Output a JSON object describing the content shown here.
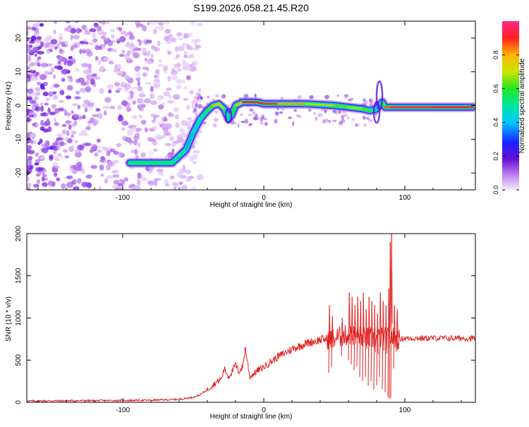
{
  "title": "S199.2026.058.21.45.R20",
  "chart_data": [
    {
      "type": "heatmap",
      "title": "S199.2026.058.21.45.R20",
      "xlabel": "Height of straight line (km)",
      "ylabel": "Frequency (Hz)",
      "xlim": [
        -168,
        150
      ],
      "ylim": [
        -25,
        25
      ],
      "xticks": [
        -100,
        0,
        100
      ],
      "yticks": [
        -20,
        -10,
        0,
        10,
        20
      ],
      "colorbar": {
        "label": "Normalized spectral amplitude",
        "range": [
          0,
          1
        ],
        "ticks": [
          0.0,
          0.2,
          0.4,
          0.6,
          0.8
        ]
      },
      "noise_region_x": [
        -168,
        -55
      ],
      "ridge": {
        "x": [
          -95,
          -65,
          -55,
          -50,
          -45,
          -40,
          -36,
          -32,
          -28,
          -25,
          -23,
          -20,
          -15,
          -12,
          -5,
          0,
          10,
          30,
          50,
          60,
          70,
          75,
          80,
          84,
          86,
          90,
          120,
          148
        ],
        "freq": [
          -17,
          -17,
          -13,
          -8,
          -4,
          -1.5,
          0,
          0.5,
          -1,
          -4,
          -3,
          0,
          1,
          1,
          1,
          0.5,
          0.5,
          0.5,
          0,
          -0.5,
          -1,
          -1.5,
          -1,
          1,
          -0.5,
          -0.5,
          -0.5,
          -0.5
        ],
        "amp": [
          0.55,
          0.55,
          0.4,
          0.35,
          0.45,
          0.55,
          0.7,
          0.85,
          0.6,
          0.4,
          0.5,
          0.65,
          0.9,
          0.92,
          0.92,
          0.9,
          0.88,
          0.75,
          0.6,
          0.65,
          0.7,
          0.55,
          0.45,
          0.4,
          0.85,
          0.88,
          0.9,
          0.9
        ]
      }
    },
    {
      "type": "line",
      "xlabel": "Height of straight line (km)",
      "ylabel": "SNR (10 * v/v)",
      "xlim": [
        -168,
        150
      ],
      "ylim": [
        0,
        2000
      ],
      "xticks": [
        -100,
        0,
        100
      ],
      "yticks": [
        0,
        500,
        1000,
        1500,
        2000
      ],
      "series": [
        {
          "name": "SNR",
          "color": "#e02020",
          "x": [
            -168,
            -150,
            -120,
            -100,
            -80,
            -60,
            -50,
            -45,
            -40,
            -35,
            -30,
            -28,
            -25,
            -22,
            -20,
            -18,
            -15,
            -13,
            -10,
            -5,
            0,
            10,
            20,
            30,
            40,
            45,
            50,
            55,
            60,
            65,
            70,
            75,
            80,
            85,
            88,
            90,
            92,
            95,
            100,
            110,
            120,
            130,
            140,
            150
          ],
          "y": [
            15,
            18,
            20,
            22,
            25,
            35,
            60,
            90,
            150,
            220,
            280,
            400,
            300,
            380,
            450,
            360,
            420,
            650,
            300,
            370,
            420,
            540,
            630,
            700,
            740,
            750,
            760,
            780,
            800,
            800,
            780,
            760,
            750,
            770,
            760,
            780,
            760,
            750,
            760,
            760,
            760,
            760,
            760,
            760
          ],
          "spikes": [
            {
              "x": 46,
              "min": 350,
              "max": 1150
            },
            {
              "x": 48,
              "min": 420,
              "max": 1020
            },
            {
              "x": 55,
              "min": 550,
              "max": 1000
            },
            {
              "x": 60,
              "min": 500,
              "max": 1300
            },
            {
              "x": 62,
              "min": 450,
              "max": 1250
            },
            {
              "x": 64,
              "min": 380,
              "max": 1150
            },
            {
              "x": 66,
              "min": 430,
              "max": 1250
            },
            {
              "x": 68,
              "min": 300,
              "max": 1200
            },
            {
              "x": 70,
              "min": 250,
              "max": 1300
            },
            {
              "x": 72,
              "min": 300,
              "max": 1100
            },
            {
              "x": 74,
              "min": 200,
              "max": 1250
            },
            {
              "x": 76,
              "min": 250,
              "max": 1200
            },
            {
              "x": 78,
              "min": 150,
              "max": 1150
            },
            {
              "x": 80,
              "min": 200,
              "max": 1050
            },
            {
              "x": 82,
              "min": 300,
              "max": 1300
            },
            {
              "x": 84,
              "min": 150,
              "max": 1200
            },
            {
              "x": 86,
              "min": 120,
              "max": 1150
            },
            {
              "x": 88,
              "min": 60,
              "max": 1350
            },
            {
              "x": 89,
              "min": 40,
              "max": 1900
            },
            {
              "x": 90,
              "min": 50,
              "max": 2000
            },
            {
              "x": 92,
              "min": 400,
              "max": 1150
            },
            {
              "x": 94,
              "min": 600,
              "max": 1100
            }
          ]
        }
      ]
    }
  ]
}
